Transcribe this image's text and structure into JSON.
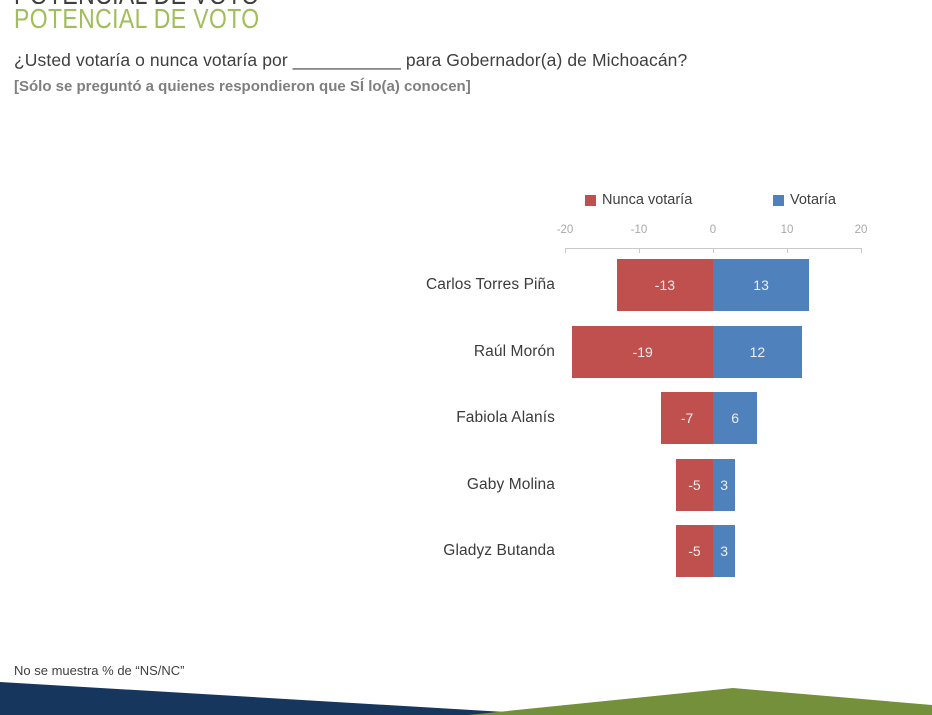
{
  "page": {
    "title": "POTENCIAL DE VOTO",
    "question": "¿Usted votaría o nunca votaría por ___________ para Gobernador(a) de Michoacán?",
    "subtitle": "[Sólo se preguntó a quienes respondieron que SÍ lo(a) conocen]",
    "footnote": "No se muestra % de “NS/NC”"
  },
  "colors": {
    "title_green": "#a0be59",
    "negative_red": "#c0504d",
    "positive_blue": "#4f81bd",
    "axis_line_gray": "#c8c8c8",
    "tick_label_gray": "#a8a8a8",
    "text_dark": "#3f3f3f",
    "subtitle_gray": "#7f7f7f",
    "bar_value_text": "#ededed",
    "footer_navy": "#17365d",
    "footer_green": "#74903a"
  },
  "chart_data": {
    "type": "bar",
    "orientation": "horizontal-diverging",
    "title": "",
    "categories": [
      "Carlos Torres Piña",
      "Raúl Morón",
      "Fabiola Alanís",
      "Gaby Molina",
      "Gladyz Butanda"
    ],
    "series": [
      {
        "name": "Nunca votaría",
        "color": "#c0504d",
        "values": [
          -13,
          -19,
          -7,
          -5,
          -5
        ]
      },
      {
        "name": "Votaría",
        "color": "#4f81bd",
        "values": [
          13,
          12,
          6,
          3,
          3
        ]
      }
    ],
    "xlim": [
      -20,
      20
    ],
    "x_ticks": [
      -20,
      -10,
      0,
      10,
      20
    ],
    "legend_position": "top",
    "grid": false,
    "data_labels": true
  }
}
